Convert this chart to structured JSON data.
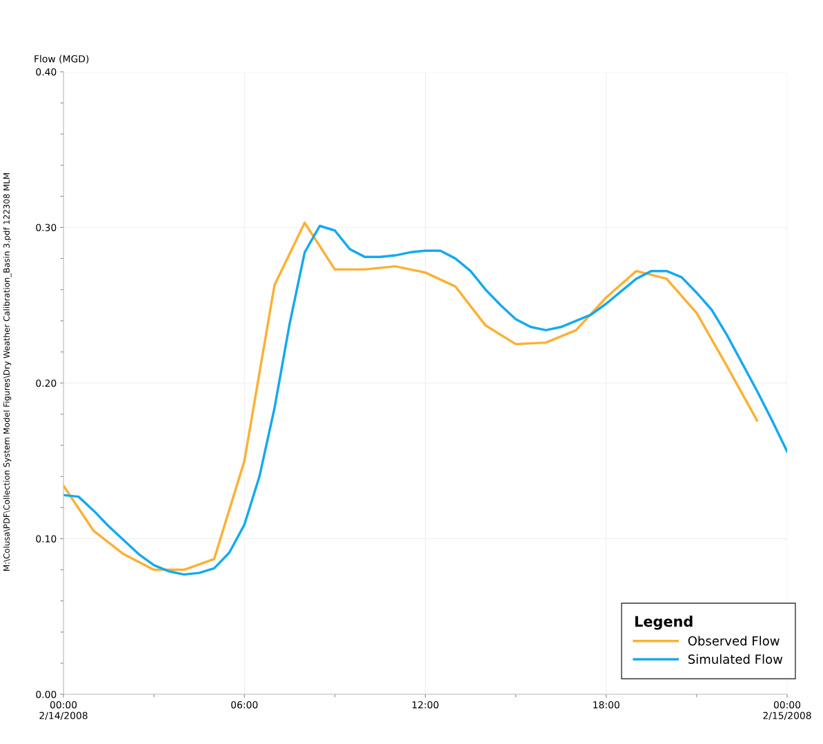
{
  "chart_data": {
    "type": "line",
    "ylabel": "Flow (MGD)",
    "legend_title": "Legend",
    "legend": "bottom right",
    "grid": true,
    "marker": "none",
    "line_style": "solid",
    "xlim": [
      0,
      24
    ],
    "ylim": [
      0,
      0.4
    ],
    "xticks": [
      {
        "value": 0,
        "label": "00:00\n2/14/2008"
      },
      {
        "value": 3,
        "label": null
      },
      {
        "value": 6,
        "label": "06:00"
      },
      {
        "value": 9,
        "label": null
      },
      {
        "value": 12,
        "label": "12:00"
      },
      {
        "value": 15,
        "label": null
      },
      {
        "value": 18,
        "label": "18:00"
      },
      {
        "value": 21,
        "label": null
      },
      {
        "value": 24,
        "label": "00:00\n2/15/2008"
      }
    ],
    "yticks": [
      {
        "value": 0,
        "label": "0.00"
      },
      {
        "value": 0.02,
        "label": null
      },
      {
        "value": 0.04,
        "label": null
      },
      {
        "value": 0.06,
        "label": null
      },
      {
        "value": 0.08,
        "label": null
      },
      {
        "value": 0.1,
        "label": "0.10"
      },
      {
        "value": 0.12,
        "label": null
      },
      {
        "value": 0.14,
        "label": null
      },
      {
        "value": 0.16,
        "label": null
      },
      {
        "value": 0.18,
        "label": null
      },
      {
        "value": 0.2,
        "label": "0.20"
      },
      {
        "value": 0.22,
        "label": null
      },
      {
        "value": 0.24,
        "label": null
      },
      {
        "value": 0.26,
        "label": null
      },
      {
        "value": 0.28,
        "label": null
      },
      {
        "value": 0.3,
        "label": "0.30"
      },
      {
        "value": 0.32,
        "label": null
      },
      {
        "value": 0.34,
        "label": null
      },
      {
        "value": 0.36,
        "label": null
      },
      {
        "value": 0.38,
        "label": null
      },
      {
        "value": 0.4,
        "label": "0.40"
      }
    ],
    "annotations": [
      "M:\\Colusa\\PDF\\Collection System Model Figures\\Dry Weather Calibration_Basin 3.pdf 122308 MLM"
    ],
    "series": [
      {
        "name": "Observed Flow",
        "color": "#fbb034",
        "x": [
          0,
          1,
          2,
          3,
          4,
          5,
          6,
          7,
          8,
          9,
          10,
          11,
          12,
          13,
          14,
          15,
          16,
          17,
          18,
          19,
          20,
          21,
          22,
          23
        ],
        "values": [
          0.134,
          0.105,
          0.09,
          0.08,
          0.08,
          0.087,
          0.15,
          0.263,
          0.303,
          0.273,
          0.273,
          0.275,
          0.271,
          0.262,
          0.237,
          0.225,
          0.226,
          0.234,
          0.255,
          0.272,
          0.267,
          0.245,
          0.211,
          0.176
        ]
      },
      {
        "name": "Simulated Flow",
        "color": "#14a9f0",
        "x": [
          0,
          0.5,
          1,
          1.5,
          2,
          2.5,
          3,
          3.5,
          4,
          4.5,
          5,
          5.5,
          6,
          6.5,
          7,
          7.5,
          8,
          8.5,
          9,
          9.5,
          10,
          10.5,
          11,
          11.5,
          12,
          12.5,
          13,
          13.5,
          14,
          14.5,
          15,
          15.5,
          16,
          16.5,
          17,
          17.5,
          18,
          18.5,
          19,
          19.5,
          20,
          20.5,
          21,
          21.5,
          22,
          22.5,
          23,
          23.5,
          24
        ],
        "values": [
          0.128,
          0.127,
          0.118,
          0.108,
          0.099,
          0.09,
          0.083,
          0.079,
          0.077,
          0.078,
          0.081,
          0.091,
          0.109,
          0.14,
          0.184,
          0.238,
          0.284,
          0.301,
          0.298,
          0.286,
          0.281,
          0.281,
          0.282,
          0.284,
          0.285,
          0.285,
          0.28,
          0.272,
          0.26,
          0.25,
          0.241,
          0.236,
          0.234,
          0.236,
          0.24,
          0.244,
          0.251,
          0.259,
          0.267,
          0.272,
          0.272,
          0.268,
          0.258,
          0.247,
          0.231,
          0.213,
          0.195,
          0.176,
          0.156
        ]
      }
    ]
  }
}
